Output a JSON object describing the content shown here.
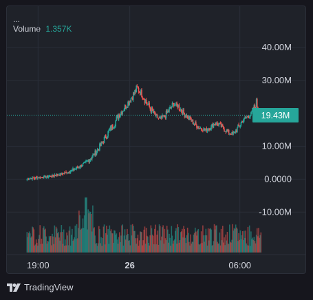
{
  "legend": {
    "title": "...",
    "volume_label": "Volume",
    "volume_value": "1.357K"
  },
  "last_price_label": "19.43M",
  "footer": {
    "brand": "TradingView"
  },
  "colors": {
    "up": "#26a69a",
    "down": "#ef5350",
    "background": "#1f2229",
    "grid": "#2a2e39",
    "text": "#d1d4dc"
  },
  "icons": {
    "brand_logo": "tradingview-logo-icon"
  },
  "chart_data": {
    "type": "candlestick",
    "y_axis": {
      "position": "right",
      "ticks": [
        {
          "value": 40,
          "label": "40.00M"
        },
        {
          "value": 30,
          "label": "30.00M"
        },
        {
          "value": 10,
          "label": "10.00M"
        },
        {
          "value": 0,
          "label": "0.0000"
        },
        {
          "value": -10,
          "label": "-10.00M"
        }
      ],
      "range": [
        -16,
        45
      ],
      "unit": "M"
    },
    "x_axis": {
      "range_hours": [
        17.3,
        30.5
      ],
      "ticks": [
        {
          "hour": 19,
          "label": "19:00",
          "bold": false
        },
        {
          "hour": 24,
          "label": "26",
          "bold": true
        },
        {
          "hour": 30,
          "label": "06:00",
          "bold": false
        }
      ]
    },
    "last_price": 19.43,
    "close_series_start_hour": 18.4,
    "close_series_step_hours": 0.25,
    "close_series": [
      0.0,
      0.3,
      0.4,
      0.6,
      0.7,
      0.8,
      1.2,
      1.5,
      1.8,
      2.2,
      2.8,
      3.5,
      4.3,
      5.2,
      6.5,
      8.2,
      10.2,
      12.6,
      14.8,
      16.9,
      19.5,
      21.3,
      23.2,
      25.3,
      27.6,
      26.0,
      23.4,
      21.1,
      19.2,
      18.3,
      19.1,
      21.0,
      22.9,
      22.1,
      20.3,
      18.9,
      17.5,
      16.2,
      15.3,
      14.9,
      15.7,
      17.1,
      16.4,
      15.2,
      14.1,
      13.7,
      15.6,
      17.8,
      18.9,
      19.8,
      23.1,
      19.4
    ],
    "volume_panel": {
      "peak_value": 1357,
      "note": "volume bars rendered relative to peak"
    }
  }
}
